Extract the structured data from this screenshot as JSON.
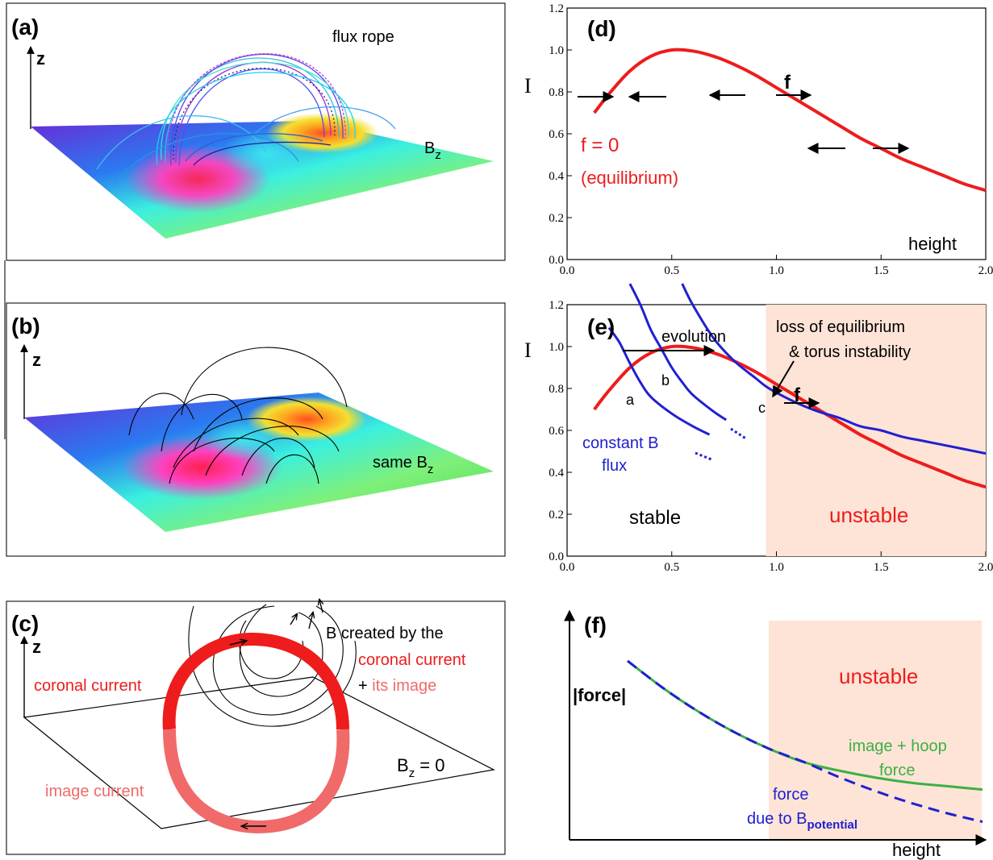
{
  "colors": {
    "red": "#ee1c1c",
    "pink": "#f06a6a",
    "blue": "#2020d0",
    "green": "#3cb043",
    "unstable_bg": "#fde4d6"
  },
  "panels": {
    "a": {
      "letter": "(a)",
      "axis": "z",
      "rope_label": "flux rope",
      "field_label": "B",
      "field_sub": "z"
    },
    "b": {
      "letter": "(b)",
      "axis": "z",
      "field_label": "same B",
      "field_sub": "z"
    },
    "c": {
      "letter": "(c)",
      "axis": "z",
      "b_created": "B created by the",
      "coronal_current_right": "coronal current",
      "plus": "+ ",
      "its_image": "its image",
      "coronal_current_left": "coronal current",
      "image_current": "image current",
      "bz_label": "B",
      "bz_sub": "z",
      "bz_value": " = 0"
    },
    "d": {
      "letter": "(d)",
      "ylabel": "I",
      "xlabel": "height",
      "f_label": "f",
      "eq_line1": "f = 0",
      "eq_line2": "(equilibrium)"
    },
    "e": {
      "letter": "(e)",
      "ylabel": "I",
      "evolution": "evolution",
      "loss_line1": "loss of equilibrium",
      "loss_line2": "& torus instability",
      "f_label": "f",
      "point_a": "a",
      "point_b": "b",
      "point_c": "c",
      "const_line1": "constant B",
      "const_line2": "flux",
      "stable": "stable",
      "unstable": "unstable"
    },
    "f": {
      "letter": "(f)",
      "ylabel": "|force|",
      "xlabel": "height",
      "unstable": "unstable",
      "hoop_line1": "image + hoop",
      "hoop_line2": "force",
      "pot_line1": "force",
      "pot_line2": "due to B",
      "pot_sub": "potential"
    }
  },
  "chart_data": [
    {
      "type": "line",
      "panel": "d",
      "xlim": [
        0,
        2.0
      ],
      "ylim": [
        0,
        1.2
      ],
      "xticks": [
        "0.0",
        "0.5",
        "1.0",
        "1.5",
        "2.0"
      ],
      "yticks": [
        "0.0",
        "0.2",
        "0.4",
        "0.6",
        "0.8",
        "1.0",
        "1.2"
      ],
      "ylabel": "I",
      "xlabel": "height",
      "series": [
        {
          "name": "f = 0",
          "x": [
            0.13,
            0.2,
            0.3,
            0.4,
            0.5,
            0.6,
            0.7,
            0.8,
            0.9,
            1.0,
            1.1,
            1.2,
            1.3,
            1.4,
            1.5,
            1.6,
            1.7,
            1.8,
            1.9,
            2.0
          ],
          "y": [
            0.7,
            0.79,
            0.9,
            0.97,
            1.0,
            0.995,
            0.97,
            0.93,
            0.88,
            0.82,
            0.76,
            0.7,
            0.64,
            0.58,
            0.53,
            0.48,
            0.44,
            0.4,
            0.36,
            0.33
          ]
        }
      ]
    },
    {
      "type": "line",
      "panel": "e",
      "xlim": [
        0,
        2.0
      ],
      "ylim": [
        0,
        1.2
      ],
      "xticks": [
        "0.0",
        "0.5",
        "1.0",
        "1.5",
        "2.0"
      ],
      "yticks": [
        "0.0",
        "0.2",
        "0.4",
        "0.6",
        "0.8",
        "1.0",
        "1.2"
      ],
      "ylabel": "I",
      "unstable_from_x": 0.95,
      "series": [
        {
          "name": "f = 0",
          "x": [
            0.13,
            0.2,
            0.3,
            0.4,
            0.5,
            0.6,
            0.7,
            0.8,
            0.9,
            1.0,
            1.1,
            1.2,
            1.3,
            1.4,
            1.5,
            1.6,
            1.7,
            1.8,
            1.9,
            2.0
          ],
          "y": [
            0.7,
            0.79,
            0.9,
            0.97,
            1.0,
            0.995,
            0.97,
            0.93,
            0.88,
            0.82,
            0.76,
            0.7,
            0.64,
            0.58,
            0.53,
            0.48,
            0.44,
            0.4,
            0.36,
            0.33
          ]
        },
        {
          "name": "constant B flux a",
          "x": [
            0.2,
            0.25,
            0.3,
            0.35,
            0.4,
            0.5,
            0.6,
            0.68
          ],
          "y": [
            1.09,
            1.02,
            0.92,
            0.83,
            0.76,
            0.68,
            0.62,
            0.58
          ]
        },
        {
          "name": "constant B flux b",
          "x": [
            0.3,
            0.35,
            0.4,
            0.45,
            0.5,
            0.55,
            0.6,
            0.7,
            0.76
          ],
          "y": [
            1.3,
            1.2,
            1.08,
            0.99,
            0.9,
            0.83,
            0.77,
            0.69,
            0.65
          ]
        },
        {
          "name": "constant B flux c",
          "x": [
            0.55,
            0.6,
            0.7,
            0.8,
            0.9,
            0.95,
            1.0,
            1.1,
            1.2,
            1.3,
            1.4,
            1.5,
            1.6,
            1.7,
            1.8,
            1.9,
            2.0
          ],
          "y": [
            1.3,
            1.2,
            1.04,
            0.93,
            0.85,
            0.81,
            0.78,
            0.73,
            0.69,
            0.66,
            0.62,
            0.6,
            0.57,
            0.55,
            0.53,
            0.51,
            0.49
          ]
        }
      ],
      "points": [
        {
          "label": "a",
          "x": 0.3,
          "y": 0.9
        },
        {
          "label": "b",
          "x": 0.5,
          "y": 1.0
        },
        {
          "label": "c",
          "x": 0.95,
          "y": 0.81
        }
      ]
    },
    {
      "type": "line",
      "panel": "f",
      "ylabel": "|force|",
      "xlabel": "height",
      "unstable_from_x": 0.5,
      "series": [
        {
          "name": "image + hoop force",
          "x": [
            0.0,
            0.1,
            0.2,
            0.3,
            0.4,
            0.5,
            0.6,
            0.7,
            0.8,
            0.9,
            1.0
          ],
          "y": [
            1.0,
            0.84,
            0.7,
            0.58,
            0.48,
            0.4,
            0.35,
            0.31,
            0.28,
            0.26,
            0.24
          ]
        },
        {
          "name": "force due to B potential",
          "x": [
            0.0,
            0.1,
            0.2,
            0.3,
            0.4,
            0.5,
            0.6,
            0.7,
            0.8,
            0.9,
            1.0
          ],
          "y": [
            1.0,
            0.84,
            0.7,
            0.58,
            0.48,
            0.4,
            0.31,
            0.23,
            0.16,
            0.1,
            0.05
          ]
        }
      ]
    }
  ]
}
